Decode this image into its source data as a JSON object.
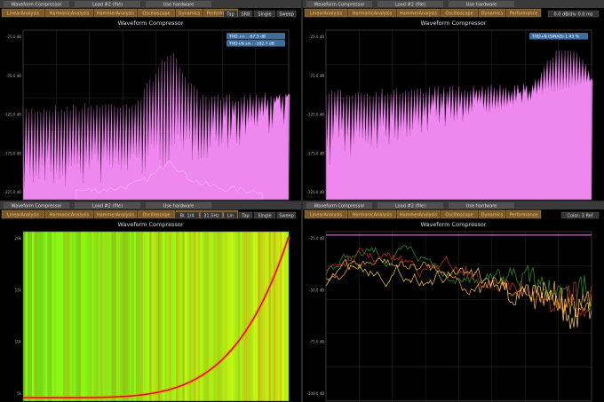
{
  "panels": [
    {
      "window_tabs": [
        "Waveform Compressor",
        "Load #2 (file)",
        "Use hardware"
      ],
      "tabs": [
        "LinearAnalysis",
        "HarmonicAnalysis",
        "HammerAnalysis",
        "Oscilloscope",
        "Dynamics",
        "Performance"
      ],
      "title": "Waveform Compressor",
      "controls": [
        "Tap",
        "SRB",
        "Single",
        "Sweep"
      ],
      "notes": [
        "THD +n : -67.3 dB",
        "THD+N sin : -102.7 dB"
      ],
      "y_labels": [
        "-25.0 dB",
        "-75.0 dB",
        "-125.0 dB",
        "-175.0 dB",
        "-225.0 dB"
      ]
    },
    {
      "window_tabs": [
        "Waveform Compressor",
        "Load #2 (file)",
        "Use hardware"
      ],
      "tabs": [
        "LinearAnalysis",
        "HarmonicAnalysis",
        "HammerAnalysis",
        "Oscilloscope",
        "Dynamics",
        "Performance"
      ],
      "title": "Waveform Compressor",
      "controls": [
        "0.0 dB/div 0.0 ms"
      ],
      "notes": [
        "THD+N (SINAD) 1.43 %"
      ],
      "y_labels": [
        "-25.0 dB",
        "-75.0 dB",
        "-125.0 dB",
        "-175.0 dB",
        "-225.0 dB"
      ]
    },
    {
      "window_tabs": [
        "Waveform Compressor",
        "Load #2 (file)",
        "Use hardware"
      ],
      "tabs": [
        "LinearAnalysis",
        "HarmonicAnalysis",
        "HammerAnalysis",
        "Oscilloscope",
        "Dynamics",
        "Performance"
      ],
      "title": "Waveform Compressor",
      "controls": [
        "Bl. 1/4",
        "31.5Hz",
        "Lin",
        "Tap",
        "Single",
        "Sweep"
      ],
      "notes": [],
      "y_labels": [
        "20k",
        "15k",
        "10k",
        "5k"
      ]
    },
    {
      "window_tabs": [
        "Waveform Compressor",
        "Load #2 (file)",
        "Use hardware"
      ],
      "tabs": [
        "LinearAnalysis",
        "HarmonicAnalysis",
        "HammerAnalysis",
        "Oscilloscope",
        "Dynamics",
        "Performance"
      ],
      "title": "Waveform Compressor",
      "controls": [
        "Color: 3 Ref"
      ],
      "notes": [],
      "y_labels": [
        "-25.0 dB",
        "-50.0 dB",
        "-75.0 dB",
        "-100.0 dB"
      ]
    }
  ]
}
